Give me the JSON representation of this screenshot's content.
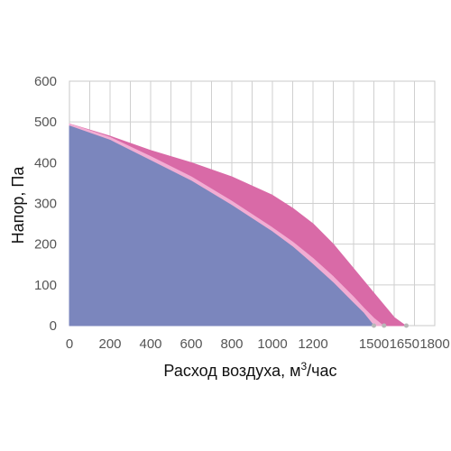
{
  "chart_data": {
    "type": "area",
    "title": "",
    "xlabel": "Расход воздуха, м",
    "xlabel_sup": "3",
    "xlabel_suffix": "/час",
    "ylabel": "Напор, Па",
    "xlim": [
      0,
      1800
    ],
    "ylim": [
      0,
      600
    ],
    "grid": true,
    "x_ticks": [
      0,
      200,
      400,
      600,
      800,
      1000,
      1200,
      1500,
      1650,
      1800
    ],
    "x_tick_labels": [
      "0",
      "200",
      "400",
      "600",
      "800",
      "1000",
      "1200",
      "1500",
      "1650",
      "1800"
    ],
    "y_ticks": [
      0,
      100,
      200,
      300,
      400,
      500,
      600
    ],
    "y_tick_labels": [
      "0",
      "100",
      "200",
      "300",
      "400",
      "500",
      "600"
    ],
    "series": [
      {
        "color": "#d96aa7",
        "x": [
          0,
          200,
          400,
          600,
          800,
          1000,
          1100,
          1200,
          1300,
          1400,
          1500,
          1600,
          1650,
          1660
        ],
        "y": [
          495,
          465,
          430,
          400,
          365,
          320,
          288,
          250,
          200,
          140,
          80,
          20,
          2,
          0
        ]
      },
      {
        "color": "#f2add3",
        "x": [
          0,
          200,
          400,
          600,
          800,
          1000,
          1100,
          1200,
          1300,
          1400,
          1450,
          1500,
          1540,
          1550
        ],
        "y": [
          495,
          462,
          415,
          365,
          305,
          240,
          205,
          165,
          120,
          70,
          43,
          18,
          2,
          0
        ]
      },
      {
        "color": "#7b86bd",
        "x": [
          0,
          200,
          400,
          600,
          800,
          1000,
          1100,
          1200,
          1300,
          1400,
          1450,
          1490,
          1500
        ],
        "y": [
          490,
          455,
          405,
          355,
          295,
          230,
          193,
          150,
          105,
          55,
          30,
          5,
          0
        ]
      }
    ]
  }
}
